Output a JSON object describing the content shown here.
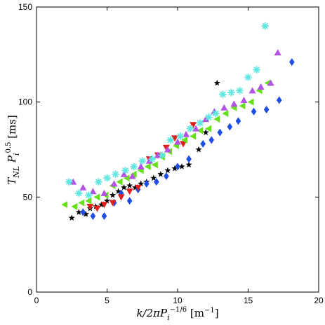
{
  "chart_data": {
    "type": "scatter",
    "xlabel": "k/2πP_i^{-1/6} [m^{-1}]",
    "ylabel": "T_{NL} P_i^{0.5} [ms]",
    "xlim": [
      0,
      20
    ],
    "ylim": [
      0,
      150
    ],
    "x_ticks": [
      0,
      5,
      10,
      15,
      20
    ],
    "y_ticks": [
      0,
      50,
      100,
      150
    ],
    "grid": false,
    "legend": "none",
    "series": [
      {
        "marker": "star",
        "color": "#000000",
        "points": [
          [
            2.5,
            39
          ],
          [
            3.0,
            42
          ],
          [
            3.5,
            41
          ],
          [
            3.8,
            44
          ],
          [
            4.2,
            45
          ],
          [
            4.6,
            46
          ],
          [
            5.0,
            48
          ],
          [
            5.4,
            51
          ],
          [
            5.8,
            53
          ],
          [
            6.2,
            55
          ],
          [
            6.6,
            56
          ],
          [
            7.0,
            55
          ],
          [
            7.4,
            57
          ],
          [
            7.8,
            58
          ],
          [
            8.3,
            60
          ],
          [
            8.8,
            62
          ],
          [
            9.3,
            64
          ],
          [
            9.8,
            65
          ],
          [
            10.3,
            66
          ],
          [
            10.8,
            67
          ],
          [
            11.5,
            75
          ],
          [
            12.0,
            84
          ],
          [
            12.8,
            110
          ]
        ]
      },
      {
        "marker": "diamond",
        "color": "#1f4ee6",
        "points": [
          [
            3.3,
            42
          ],
          [
            4.0,
            40
          ],
          [
            4.8,
            40
          ],
          [
            5.5,
            47
          ],
          [
            6.0,
            52
          ],
          [
            6.6,
            48
          ],
          [
            7.2,
            54
          ],
          [
            7.8,
            57
          ],
          [
            8.5,
            58
          ],
          [
            9.2,
            61
          ],
          [
            10.0,
            66
          ],
          [
            10.8,
            70
          ],
          [
            11.8,
            78
          ],
          [
            12.4,
            80
          ],
          [
            13.0,
            84
          ],
          [
            13.7,
            87
          ],
          [
            14.3,
            90
          ],
          [
            15.4,
            95
          ],
          [
            16.3,
            96
          ],
          [
            17.2,
            101
          ],
          [
            18.1,
            121
          ]
        ]
      },
      {
        "marker": "triangle-down",
        "color": "#e0201b",
        "points": [
          [
            3.8,
            45
          ],
          [
            4.3,
            44
          ],
          [
            4.8,
            46
          ],
          [
            5.4,
            47
          ],
          [
            6.0,
            50
          ],
          [
            6.6,
            53
          ],
          [
            7.2,
            55
          ],
          [
            8.0,
            70
          ],
          [
            8.6,
            72
          ],
          [
            9.2,
            76
          ],
          [
            9.8,
            81
          ],
          [
            10.4,
            78
          ],
          [
            11.1,
            88
          ]
        ]
      },
      {
        "marker": "triangle-left",
        "color": "#66e01a",
        "points": [
          [
            2.0,
            46
          ],
          [
            2.7,
            45
          ],
          [
            3.2,
            47
          ],
          [
            3.7,
            48
          ],
          [
            4.3,
            50
          ],
          [
            4.9,
            51
          ],
          [
            5.4,
            56
          ],
          [
            5.9,
            58
          ],
          [
            6.4,
            60
          ],
          [
            6.9,
            62
          ],
          [
            7.4,
            64
          ],
          [
            7.9,
            66
          ],
          [
            8.4,
            67
          ],
          [
            8.9,
            71
          ],
          [
            9.4,
            74
          ],
          [
            9.9,
            77
          ],
          [
            10.5,
            80
          ],
          [
            11.1,
            82
          ],
          [
            11.6,
            85
          ],
          [
            12.2,
            86
          ],
          [
            12.8,
            91
          ],
          [
            13.4,
            94
          ],
          [
            14.0,
            97
          ],
          [
            14.6,
            98
          ],
          [
            15.2,
            100
          ],
          [
            15.8,
            106
          ],
          [
            16.4,
            110
          ]
        ]
      },
      {
        "marker": "triangle-up",
        "color": "#b552e6",
        "points": [
          [
            2.6,
            58
          ],
          [
            3.3,
            55
          ],
          [
            4.0,
            53
          ],
          [
            4.8,
            52
          ],
          [
            5.5,
            57
          ],
          [
            6.2,
            62
          ],
          [
            6.8,
            61
          ],
          [
            7.4,
            66
          ],
          [
            8.0,
            69
          ],
          [
            8.6,
            72
          ],
          [
            9.3,
            75
          ],
          [
            10.0,
            79
          ],
          [
            10.6,
            83
          ],
          [
            11.3,
            86
          ],
          [
            12.0,
            91
          ],
          [
            12.6,
            95
          ],
          [
            13.3,
            97
          ],
          [
            14.0,
            99
          ],
          [
            14.7,
            101
          ],
          [
            15.3,
            106
          ],
          [
            15.9,
            108
          ],
          [
            16.6,
            110
          ],
          [
            17.1,
            126
          ]
        ]
      },
      {
        "marker": "asterisk",
        "color": "#5fe7e1",
        "points": [
          [
            2.3,
            58
          ],
          [
            3.0,
            52
          ],
          [
            3.7,
            51
          ],
          [
            4.4,
            58
          ],
          [
            5.0,
            60
          ],
          [
            5.6,
            62
          ],
          [
            6.3,
            64
          ],
          [
            6.9,
            66
          ],
          [
            7.5,
            69
          ],
          [
            8.2,
            70
          ],
          [
            8.9,
            72
          ],
          [
            9.5,
            80
          ],
          [
            10.2,
            82
          ],
          [
            10.9,
            86
          ],
          [
            11.6,
            89
          ],
          [
            12.2,
            92
          ],
          [
            12.7,
            94
          ],
          [
            13.2,
            104
          ],
          [
            13.8,
            105
          ],
          [
            14.4,
            106
          ],
          [
            15.0,
            113
          ],
          [
            15.6,
            117
          ],
          [
            16.2,
            140
          ]
        ]
      }
    ]
  }
}
